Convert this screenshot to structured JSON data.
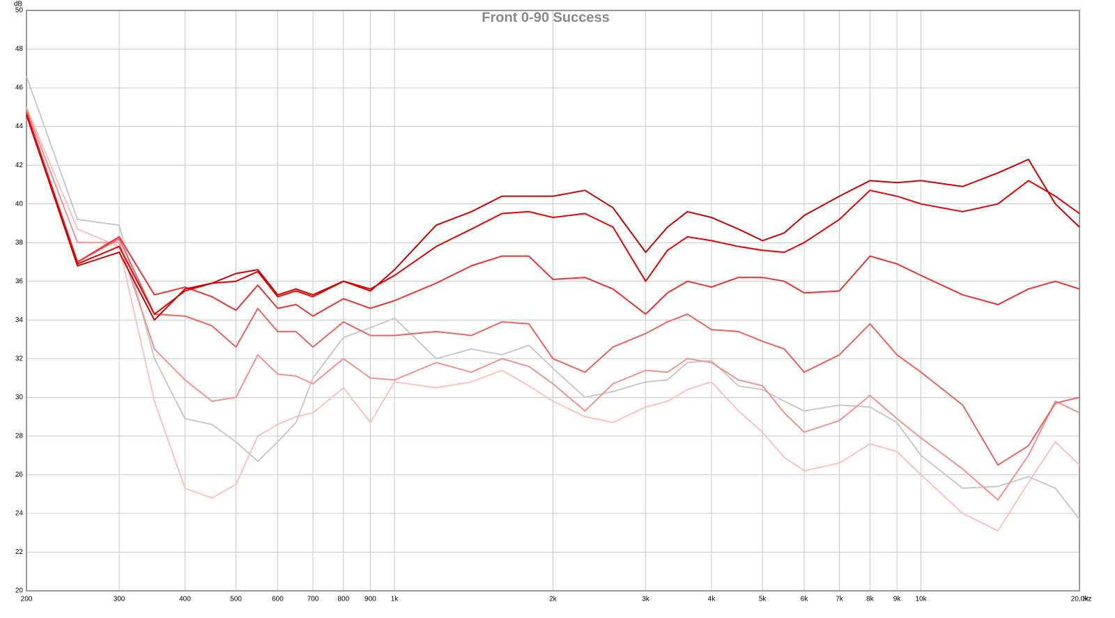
{
  "chart_data": {
    "type": "line",
    "title": "Front 0-90 Success",
    "xlabel": "Hz",
    "ylabel": "dB",
    "xlog": true,
    "grid": true,
    "xlim": [
      200,
      20000
    ],
    "ylim": [
      20,
      50
    ],
    "xticks": [
      200,
      300,
      400,
      500,
      600,
      700,
      800,
      900,
      {
        "value": 1000,
        "label": "1k"
      },
      {
        "value": 2000,
        "label": "2k"
      },
      {
        "value": 3000,
        "label": "3k"
      },
      {
        "value": 4000,
        "label": "4k"
      },
      {
        "value": 5000,
        "label": "5k"
      },
      {
        "value": 6000,
        "label": "6k"
      },
      {
        "value": 7000,
        "label": "7k"
      },
      {
        "value": 8000,
        "label": "8k"
      },
      {
        "value": 9000,
        "label": "9k"
      },
      {
        "value": 10000,
        "label": "10k"
      },
      {
        "value": 20000,
        "label": "20,0k"
      }
    ],
    "yticks": [
      20,
      22,
      24,
      26,
      28,
      30,
      32,
      34,
      36,
      38,
      40,
      42,
      44,
      46,
      48,
      50
    ],
    "x": [
      200,
      250,
      300,
      350,
      400,
      450,
      500,
      550,
      600,
      650,
      700,
      800,
      900,
      1000,
      1200,
      1400,
      1600,
      1800,
      2000,
      2300,
      2600,
      3000,
      3300,
      3600,
      4000,
      4500,
      5000,
      5500,
      6000,
      7000,
      8000,
      9000,
      10000,
      12000,
      14000,
      16000,
      18000,
      20000
    ],
    "series": [
      {
        "color": "#cc0000",
        "values": [
          44.6,
          36.8,
          37.5,
          34.0,
          35.6,
          35.9,
          36.4,
          36.6,
          35.3,
          35.6,
          35.3,
          36.0,
          35.5,
          36.6,
          38.9,
          39.6,
          40.4,
          40.4,
          40.4,
          40.7,
          39.8,
          37.5,
          38.8,
          39.6,
          39.3,
          38.7,
          38.1,
          38.5,
          39.4,
          40.4,
          41.2,
          41.1,
          41.2,
          40.9,
          41.6,
          42.3,
          40.0,
          38.8
        ]
      },
      {
        "color": "#e80000",
        "values": [
          44.6,
          36.9,
          37.8,
          34.3,
          35.5,
          35.9,
          36.0,
          36.5,
          35.2,
          35.5,
          35.2,
          36.0,
          35.6,
          36.3,
          37.8,
          38.7,
          39.5,
          39.6,
          39.3,
          39.5,
          38.8,
          36.0,
          37.6,
          38.3,
          38.1,
          37.8,
          37.6,
          37.5,
          38.0,
          39.2,
          40.7,
          40.4,
          40.0,
          39.6,
          40.0,
          41.2,
          40.4,
          39.5
        ]
      },
      {
        "color": "#ee3030",
        "values": [
          44.7,
          37.0,
          38.3,
          35.3,
          35.7,
          35.2,
          34.5,
          35.8,
          34.6,
          34.8,
          34.2,
          35.1,
          34.6,
          35.0,
          35.9,
          36.8,
          37.3,
          37.3,
          36.1,
          36.2,
          35.6,
          34.3,
          35.4,
          36.0,
          35.7,
          36.2,
          36.2,
          36.0,
          35.4,
          35.5,
          37.3,
          36.9,
          36.3,
          35.3,
          34.8,
          35.6,
          36.0,
          35.6
        ]
      },
      {
        "color": "#f06060",
        "values": [
          44.8,
          37.0,
          38.2,
          34.3,
          34.2,
          33.7,
          32.6,
          34.6,
          33.4,
          33.4,
          32.6,
          33.9,
          33.2,
          33.2,
          33.4,
          33.2,
          33.9,
          33.8,
          32.0,
          31.3,
          32.6,
          33.3,
          33.9,
          34.3,
          33.5,
          33.4,
          32.9,
          32.5,
          31.3,
          32.2,
          33.8,
          32.2,
          31.3,
          29.6,
          26.5,
          27.5,
          29.7,
          30.0
        ]
      },
      {
        "color": "#f59090",
        "values": [
          44.9,
          38.0,
          38.0,
          32.5,
          30.9,
          29.8,
          30.0,
          32.2,
          31.2,
          31.1,
          30.7,
          32.0,
          31.0,
          30.9,
          31.8,
          31.3,
          32.0,
          31.6,
          30.7,
          29.3,
          30.7,
          31.4,
          31.3,
          32.0,
          31.8,
          30.9,
          30.6,
          29.2,
          28.2,
          28.8,
          30.1,
          28.9,
          27.9,
          26.3,
          24.7,
          27.0,
          29.8,
          29.2
        ]
      },
      {
        "color": "#c8c8c8",
        "values": [
          46.6,
          39.2,
          38.9,
          32.0,
          28.9,
          28.6,
          27.7,
          26.7,
          27.7,
          28.7,
          31.0,
          33.1,
          33.6,
          34.1,
          32.0,
          32.5,
          32.2,
          32.7,
          31.5,
          30.0,
          30.3,
          30.8,
          30.9,
          31.8,
          31.9,
          30.6,
          30.4,
          29.8,
          29.3,
          29.6,
          29.5,
          28.7,
          27.0,
          25.3,
          25.4,
          25.9,
          25.3,
          23.7
        ]
      },
      {
        "color": "#ffc0c0",
        "values": [
          45.0,
          38.7,
          37.8,
          29.8,
          25.3,
          24.8,
          25.5,
          28.0,
          28.6,
          29.0,
          29.2,
          30.5,
          28.7,
          30.8,
          30.5,
          30.8,
          31.4,
          30.6,
          29.8,
          29.0,
          28.7,
          29.5,
          29.8,
          30.4,
          30.8,
          29.3,
          28.2,
          26.9,
          26.2,
          26.6,
          27.6,
          27.2,
          26.0,
          24.0,
          23.1,
          25.6,
          27.7,
          26.5
        ]
      }
    ]
  }
}
